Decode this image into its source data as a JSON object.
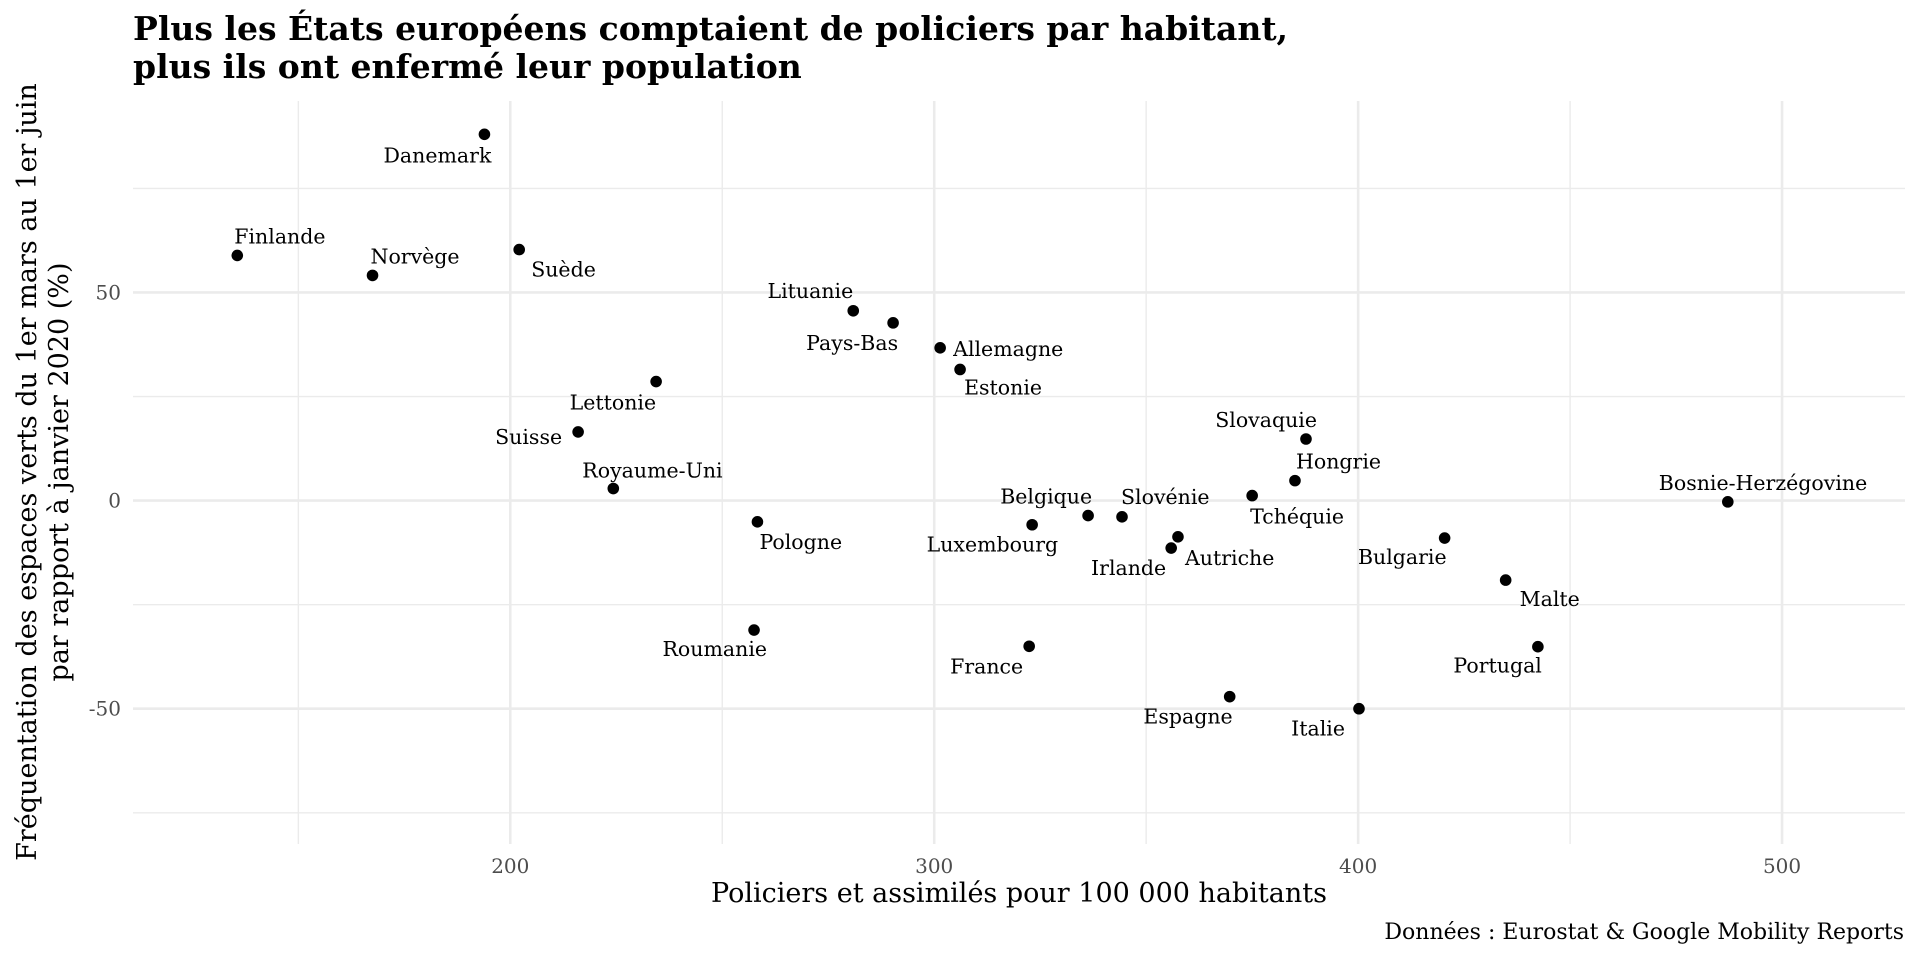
{
  "chart_data": {
    "type": "scatter",
    "title": "Plus les États européens comptaient de policiers par habitant, plus ils ont enfermé leur population",
    "title_lines": [
      "Plus les États européens comptaient de policiers par habitant,",
      "plus ils ont enfermé leur population"
    ],
    "xlabel": "Policiers et assimilés pour 100 000 habitants",
    "ylabel": "Fréquentation des espaces verts du 1er mars au 1er juin par rapport à janvier 2020 (%)",
    "ylabel_lines": [
      "Fréquentation des espaces verts du 1er mars au 1er juin",
      "par rapport à janvier 2020 (%)"
    ],
    "caption": "Données : Eurostat & Google Mobility Reports",
    "xlim": [
      111,
      529
    ],
    "ylim": [
      -82.5,
      96
    ],
    "x_ticks": [
      200,
      300,
      400,
      500
    ],
    "x_tick_labels": [
      "200",
      "300",
      "400",
      "500"
    ],
    "x_minor_ticks": [
      150,
      250,
      350,
      450
    ],
    "y_ticks": [
      -50,
      0,
      50
    ],
    "y_tick_labels": [
      "-50",
      "0",
      "50"
    ],
    "y_minor_ticks": [
      -75,
      -25,
      25,
      75
    ],
    "grid": true,
    "legend": "none",
    "point_color": "#000000",
    "grid_color": "#ebebeb",
    "points": [
      {
        "label": "Danemark",
        "x": 193.9,
        "y": 88.0
      },
      {
        "label": "Finlande",
        "x": 135.6,
        "y": 58.9
      },
      {
        "label": "Norvège",
        "x": 167.5,
        "y": 54.1
      },
      {
        "label": "Suède",
        "x": 202.1,
        "y": 60.3
      },
      {
        "label": "Lettonie",
        "x": 234.4,
        "y": 28.6
      },
      {
        "label": "Suisse",
        "x": 216.0,
        "y": 16.5
      },
      {
        "label": "Royaume-Uni",
        "x": 224.3,
        "y": 2.9
      },
      {
        "label": "Pologne",
        "x": 258.3,
        "y": -5.1
      },
      {
        "label": "Roumanie",
        "x": 257.5,
        "y": -31.1
      },
      {
        "label": "France",
        "x": 322.4,
        "y": -35.0
      },
      {
        "label": "Lituanie",
        "x": 280.9,
        "y": 45.6
      },
      {
        "label": "Pays-Bas",
        "x": 290.3,
        "y": 42.7
      },
      {
        "label": "Allemagne",
        "x": 301.4,
        "y": 36.7
      },
      {
        "label": "Estonie",
        "x": 306.1,
        "y": 31.5
      },
      {
        "label": "Luxembourg",
        "x": 323.1,
        "y": -5.8
      },
      {
        "label": "Belgique",
        "x": 336.3,
        "y": -3.6
      },
      {
        "label": "Slovénie",
        "x": 344.3,
        "y": -3.9
      },
      {
        "label": "Autriche",
        "x": 357.5,
        "y": -8.7
      },
      {
        "label": "Irlande",
        "x": 355.9,
        "y": -11.4
      },
      {
        "label": "Slovaquie",
        "x": 387.7,
        "y": 14.8
      },
      {
        "label": "Hongrie",
        "x": 385.1,
        "y": 4.8
      },
      {
        "label": "Tchéquie",
        "x": 375.0,
        "y": 1.2
      },
      {
        "label": "Espagne",
        "x": 369.7,
        "y": -47.1
      },
      {
        "label": "Italie",
        "x": 400.2,
        "y": -50.0
      },
      {
        "label": "Bulgarie",
        "x": 420.4,
        "y": -9.0
      },
      {
        "label": "Malte",
        "x": 434.8,
        "y": -19.1
      },
      {
        "label": "Portugal",
        "x": 442.4,
        "y": -35.1
      },
      {
        "label": "Bosnie-Herzégovine",
        "x": 487.2,
        "y": -0.3
      }
    ]
  }
}
